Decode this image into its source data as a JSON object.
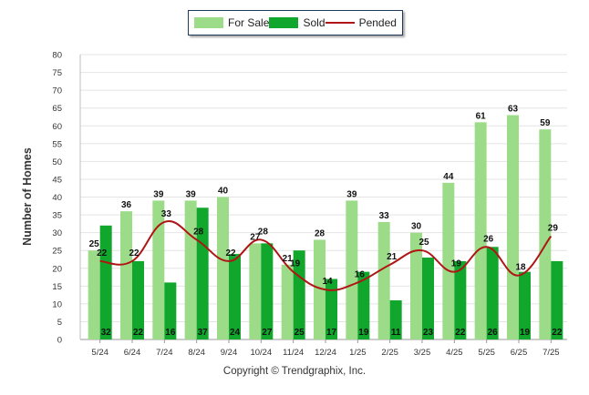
{
  "legend": {
    "for_sale": "For Sale",
    "sold": "Sold",
    "pended": "Pended"
  },
  "copyright": "Copyright © Trendgraphix, Inc.",
  "chart_data": {
    "type": "bar",
    "title": "",
    "xlabel": "",
    "ylabel": "Number of Homes",
    "ylim": [
      0,
      80
    ],
    "ytick_step": 5,
    "grid": true,
    "legend_position": "top-center",
    "categories": [
      "5/24",
      "6/24",
      "7/24",
      "8/24",
      "9/24",
      "10/24",
      "11/24",
      "12/24",
      "1/25",
      "2/25",
      "3/25",
      "4/25",
      "5/25",
      "6/25",
      "7/25"
    ],
    "series": [
      {
        "name": "For Sale",
        "type": "bar",
        "color": "#9cdc88",
        "values": [
          25,
          36,
          39,
          39,
          40,
          27,
          21,
          28,
          39,
          33,
          30,
          44,
          61,
          63,
          59
        ]
      },
      {
        "name": "Sold",
        "type": "bar",
        "color": "#11a62c",
        "values": [
          32,
          22,
          16,
          37,
          24,
          27,
          25,
          17,
          19,
          11,
          23,
          22,
          26,
          19,
          22
        ]
      },
      {
        "name": "Pended",
        "type": "line",
        "color": "#b01515",
        "values": [
          22,
          22,
          33,
          28,
          22,
          28,
          19,
          14,
          16,
          21,
          25,
          19,
          26,
          18,
          29
        ]
      }
    ]
  }
}
